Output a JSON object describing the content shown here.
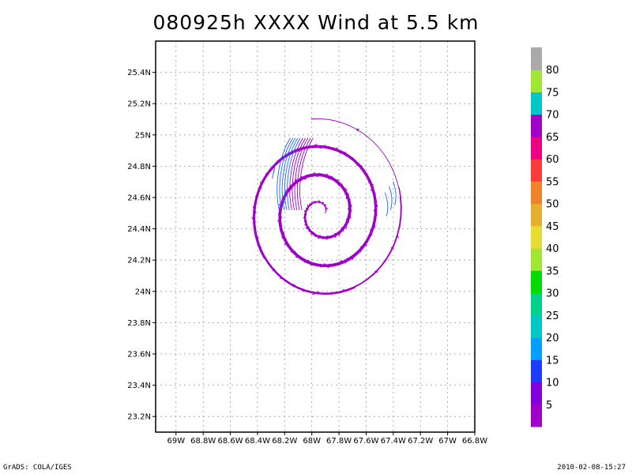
{
  "chart_data": {
    "type": "streamline",
    "title": "080925h XXXX Wind at 5.5 km",
    "x_ticks": [
      "69W",
      "68.8W",
      "68.6W",
      "68.4W",
      "68.2W",
      "68W",
      "67.8W",
      "67.6W",
      "67.4W",
      "67.2W",
      "67W",
      "66.8W"
    ],
    "y_ticks": [
      "23.2N",
      "23.4N",
      "23.6N",
      "23.8N",
      "24N",
      "24.2N",
      "24.4N",
      "24.6N",
      "24.8N",
      "25N",
      "25.2N",
      "25.4N"
    ],
    "xlim": [
      -69.15,
      -66.8
    ],
    "ylim": [
      23.1,
      25.6
    ],
    "grid": true,
    "vortex_center": {
      "lon": -67.93,
      "lat": 24.5
    },
    "colorbar": {
      "labels": [
        "5",
        "10",
        "15",
        "20",
        "25",
        "30",
        "35",
        "40",
        "45",
        "50",
        "55",
        "60",
        "65",
        "70",
        "75",
        "80"
      ],
      "colors": [
        "#a000c8",
        "#8200dc",
        "#1e3cff",
        "#00a0ff",
        "#00c8c8",
        "#00d28c",
        "#00dc00",
        "#a0e632",
        "#e6dc32",
        "#e6af2d",
        "#f08228",
        "#fa3c3c",
        "#f00082",
        "#a000c8",
        "#00c8c8",
        "#a0e632",
        "#aaaaaa"
      ]
    }
  },
  "footer": {
    "left": "GrADS: COLA/IGES",
    "right": "2010-02-08-15:27"
  }
}
